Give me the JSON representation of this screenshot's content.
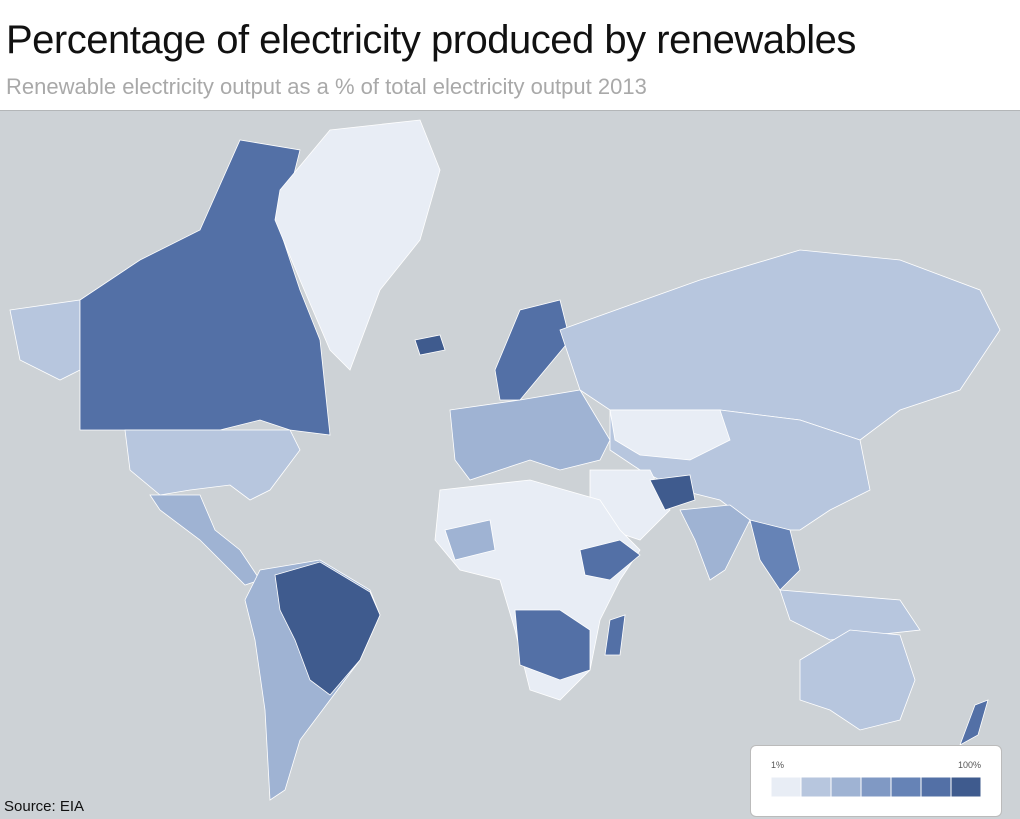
{
  "header": {
    "title": "Percentage of electricity produced by renewables",
    "subtitle": "Renewable electricity output as a % of total electricity output 2013"
  },
  "legend": {
    "min_label": "1%",
    "max_label": "100%",
    "colors": [
      "#e8edf5",
      "#b7c6de",
      "#9fb3d3",
      "#8099c4",
      "#6683b6",
      "#5370a6",
      "#3f5b8e"
    ]
  },
  "footer": {
    "source": "Source: EIA"
  }
}
